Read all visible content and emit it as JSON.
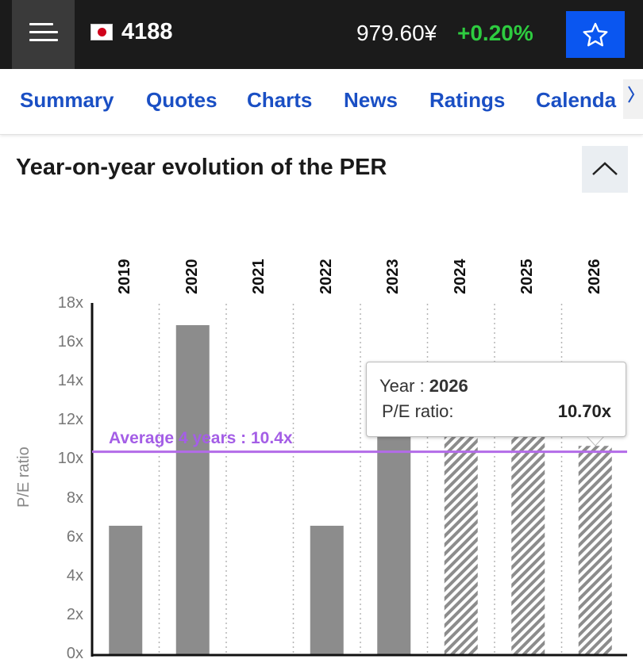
{
  "header": {
    "ticker": "4188",
    "price": "979.60¥",
    "change": "+0.20%",
    "menu_icon": "hamburger-menu-icon",
    "favorite_icon": "star-outline-icon",
    "flag_icon": "japan-flag-icon"
  },
  "tabs": [
    {
      "label": "Summary"
    },
    {
      "label": "Quotes"
    },
    {
      "label": "Charts"
    },
    {
      "label": "News"
    },
    {
      "label": "Ratings"
    },
    {
      "label": "Calenda"
    }
  ],
  "tabs_more_icon": "chevron-right-icon",
  "section": {
    "title": "Year-on-year evolution of the PER",
    "collapse_icon": "chevron-up-icon"
  },
  "chart_data": {
    "type": "bar",
    "categories": [
      "2019",
      "2020",
      "2021",
      "2022",
      "2023",
      "2024",
      "2025",
      "2026"
    ],
    "values": [
      6.6,
      16.9,
      null,
      6.6,
      11.5,
      11.5,
      11.5,
      10.7
    ],
    "estimated": [
      false,
      false,
      false,
      false,
      false,
      true,
      true,
      true
    ],
    "ylabel": "P/E ratio",
    "ylim": [
      0,
      18
    ],
    "yticks": [
      "0x",
      "2x",
      "4x",
      "6x",
      "8x",
      "10x",
      "12x",
      "14x",
      "16x",
      "18x"
    ],
    "average": {
      "label": "Average 4 years : 10.4x",
      "value": 10.4
    },
    "tooltip": {
      "year_label": "Year : ",
      "year_value": "2026",
      "ratio_label": "P/E ratio:",
      "ratio_value": "10.70x"
    },
    "colors": {
      "bar": "#8c8c8c",
      "average_line": "#b36be8",
      "axis": "#111111"
    }
  }
}
